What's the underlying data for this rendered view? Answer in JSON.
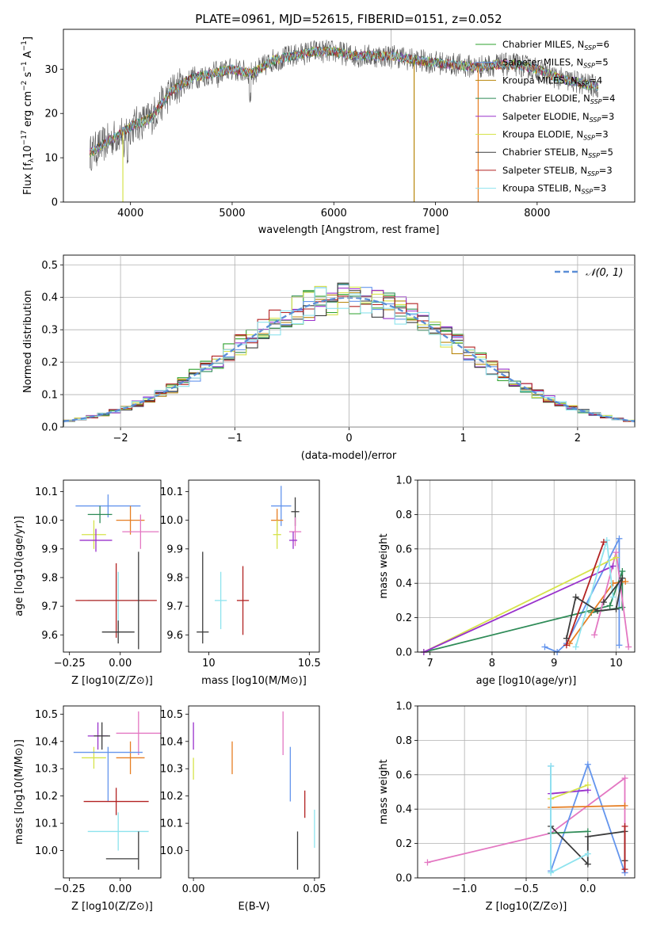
{
  "title": "PLATE=0961, MJD=52615, FIBERID=0151, z=0.052",
  "chart_data": [
    {
      "id": "spectrum",
      "type": "line",
      "xlabel": "wavelength [Angstrom, rest frame]",
      "ylabel": "Flux [f_λ 10^-17 erg cm^-2 s^-1 A^-1]",
      "xlim": [
        3340,
        8960
      ],
      "ylim": [
        0,
        39
      ],
      "xticks": [
        "4000",
        "5000",
        "6000",
        "7000",
        "8000"
      ],
      "yticks": [
        "0",
        "10",
        "20",
        "30"
      ],
      "legend_loc": "right",
      "series": [
        {
          "name": "Chabrier MILES, N_SSP=6",
          "color": "#2ca02c"
        },
        {
          "name": "Salpeter MILES, N_SSP=5",
          "color": "#6495ed"
        },
        {
          "name": "Kroupa MILES, N_SSP=4",
          "color": "#b8860b"
        },
        {
          "name": "Chabrier ELODIE, N_SSP=4",
          "color": "#2e8b57"
        },
        {
          "name": "Salpeter ELODIE, N_SSP=3",
          "color": "#9932cc"
        },
        {
          "name": "Kroupa ELODIE, N_SSP=3",
          "color": "#d6e34a"
        },
        {
          "name": "Chabrier STELIB, N_SSP=5",
          "color": "#3c3c3c"
        },
        {
          "name": "Salpeter STELIB, N_SSP=3",
          "color": "#b22222"
        },
        {
          "name": "Kroupa STELIB, N_SSP=3",
          "color": "#8ee3ee"
        }
      ],
      "spectrum_shape": [
        [
          3600,
          11
        ],
        [
          3800,
          14
        ],
        [
          4000,
          17
        ],
        [
          4200,
          19
        ],
        [
          4400,
          25
        ],
        [
          4600,
          28
        ],
        [
          4800,
          29
        ],
        [
          5000,
          30
        ],
        [
          5200,
          29
        ],
        [
          5400,
          32
        ],
        [
          5600,
          33
        ],
        [
          5800,
          34
        ],
        [
          6000,
          34
        ],
        [
          6200,
          33
        ],
        [
          6400,
          33
        ],
        [
          6600,
          33
        ],
        [
          6800,
          32
        ],
        [
          7000,
          31.5
        ],
        [
          7200,
          31
        ],
        [
          7400,
          30.5
        ],
        [
          7600,
          31
        ],
        [
          7800,
          31
        ],
        [
          8000,
          30
        ],
        [
          8200,
          28
        ],
        [
          8400,
          27
        ],
        [
          8600,
          26
        ]
      ]
    },
    {
      "id": "residuals",
      "type": "line",
      "xlabel": "(data-model)/error",
      "ylabel": "Normed distribution",
      "xlim": [
        -2.5,
        2.5
      ],
      "ylim": [
        0,
        0.53
      ],
      "xticks": [
        "−2",
        "−1",
        "0",
        "1",
        "2"
      ],
      "yticks": [
        "0.0",
        "0.1",
        "0.2",
        "0.3",
        "0.4",
        "0.5"
      ],
      "legend": "𝒩(0, 1)",
      "grid": true
    },
    {
      "id": "age-vs-Z",
      "type": "scatter",
      "xlabel": "Z [log10(Z/Z⊙)]",
      "ylabel": "age [log10(age/yr)]",
      "xlim": [
        -0.28,
        0.2
      ],
      "ylim": [
        9.54,
        10.14
      ],
      "xticks": [
        "−0.25",
        "0.00"
      ],
      "yticks": [
        "9.6",
        "9.7",
        "9.8",
        "9.9",
        "10.0",
        "10.1"
      ],
      "points": [
        {
          "x": -0.06,
          "y": 10.05,
          "xerr": 0.16,
          "yerr": 0.04,
          "color": "#6495ed"
        },
        {
          "x": -0.1,
          "y": 10.02,
          "xerr": 0.06,
          "yerr": 0.03,
          "color": "#2e8b57"
        },
        {
          "x": 0.05,
          "y": 10.0,
          "xerr": 0.07,
          "yerr": 0.05,
          "color": "#e67e22"
        },
        {
          "x": 0.1,
          "y": 9.96,
          "xerr": 0.09,
          "yerr": 0.06,
          "color": "#e377c2"
        },
        {
          "x": -0.13,
          "y": 9.95,
          "xerr": 0.06,
          "yerr": 0.05,
          "color": "#d6e34a"
        },
        {
          "x": -0.12,
          "y": 9.93,
          "xerr": 0.08,
          "yerr": 0.04,
          "color": "#9932cc"
        },
        {
          "x": -0.01,
          "y": 9.72,
          "xerr": 0.15,
          "yerr": 0.1,
          "color": "#8ee3ee"
        },
        {
          "x": -0.02,
          "y": 9.72,
          "xerr": 0.2,
          "yerr": 0.13,
          "color": "#b22222"
        },
        {
          "x": -0.01,
          "y": 9.61,
          "xerr": 0.08,
          "yerr": 0.04,
          "color": "#3c3c3c"
        },
        {
          "x": 0.09,
          "y": 9.72,
          "xerr": 0.0,
          "yerr": 0.17,
          "color": "#3c3c3c"
        }
      ]
    },
    {
      "id": "age-vs-mass",
      "type": "scatter",
      "xlabel": "mass [log10(M/M⊙)]",
      "ylabel": "",
      "xlim": [
        9.9,
        10.55
      ],
      "ylim": [
        9.54,
        10.14
      ],
      "xticks": [
        "10",
        "10.5"
      ],
      "yticks": [
        "9.6",
        "9.7",
        "9.8",
        "9.9",
        "10.0",
        "10.1"
      ],
      "points": [
        {
          "x": 10.36,
          "y": 10.05,
          "xerr": 0.05,
          "yerr": 0.07,
          "color": "#6495ed"
        },
        {
          "x": 10.43,
          "y": 10.03,
          "xerr": 0.02,
          "yerr": 0.05,
          "color": "#3c3c3c"
        },
        {
          "x": 10.34,
          "y": 10.0,
          "xerr": 0.03,
          "yerr": 0.04,
          "color": "#e67e22"
        },
        {
          "x": 10.43,
          "y": 9.96,
          "xerr": 0.03,
          "yerr": 0.05,
          "color": "#e377c2"
        },
        {
          "x": 10.34,
          "y": 9.95,
          "xerr": 0.02,
          "yerr": 0.05,
          "color": "#d6e34a"
        },
        {
          "x": 10.42,
          "y": 9.93,
          "xerr": 0.02,
          "yerr": 0.03,
          "color": "#9932cc"
        },
        {
          "x": 10.06,
          "y": 9.72,
          "xerr": 0.03,
          "yerr": 0.1,
          "color": "#8ee3ee"
        },
        {
          "x": 10.17,
          "y": 9.72,
          "xerr": 0.03,
          "yerr": 0.12,
          "color": "#b22222"
        },
        {
          "x": 9.97,
          "y": 9.61,
          "xerr": 0.03,
          "yerr": 0.0,
          "color": "#3c3c3c"
        },
        {
          "x": 9.97,
          "y": 9.73,
          "xerr": 0.0,
          "yerr": 0.16,
          "color": "#3c3c3c"
        }
      ]
    },
    {
      "id": "mass-weight-vs-age",
      "type": "line",
      "xlabel": "age [log10(age/yr)]",
      "ylabel": "mass weight",
      "xlim": [
        6.8,
        10.3
      ],
      "ylim": [
        0,
        1.0
      ],
      "xticks": [
        "7",
        "8",
        "9",
        "10"
      ],
      "yticks": [
        "0.0",
        "0.2",
        "0.4",
        "0.6",
        "0.8",
        "1.0"
      ],
      "grid": true,
      "series": [
        {
          "color": "#6495ed",
          "points": [
            [
              8.85,
              0.03
            ],
            [
              9.05,
              0.0
            ],
            [
              9.2,
              0.05
            ],
            [
              10.05,
              0.66
            ],
            [
              10.05,
              0.04
            ]
          ]
        },
        {
          "color": "#2e8b57",
          "points": [
            [
              6.9,
              0.0
            ],
            [
              9.9,
              0.27
            ],
            [
              10.1,
              0.47
            ],
            [
              10.1,
              0.26
            ],
            [
              9.6,
              0.23
            ]
          ]
        },
        {
          "color": "#e67e22",
          "points": [
            [
              9.25,
              0.05
            ],
            [
              9.95,
              0.4
            ],
            [
              10.15,
              0.41
            ]
          ]
        },
        {
          "color": "#e377c2",
          "points": [
            [
              9.65,
              0.1
            ],
            [
              10.0,
              0.58
            ],
            [
              10.2,
              0.03
            ]
          ]
        },
        {
          "color": "#d6e34a",
          "points": [
            [
              6.9,
              0.0
            ],
            [
              10.0,
              0.55
            ]
          ]
        },
        {
          "color": "#9932cc",
          "points": [
            [
              6.9,
              0.0
            ],
            [
              9.95,
              0.5
            ]
          ]
        },
        {
          "color": "#8ee3ee",
          "points": [
            [
              9.35,
              0.03
            ],
            [
              9.85,
              0.65
            ],
            [
              9.95,
              0.32
            ]
          ]
        },
        {
          "color": "#b22222",
          "points": [
            [
              9.2,
              0.04
            ],
            [
              9.8,
              0.64
            ]
          ]
        },
        {
          "color": "#3c3c3c",
          "points": [
            [
              9.2,
              0.08
            ],
            [
              9.35,
              0.32
            ],
            [
              9.7,
              0.24
            ],
            [
              10.0,
              0.25
            ],
            [
              10.1,
              0.43
            ],
            [
              9.8,
              0.29
            ]
          ]
        }
      ]
    },
    {
      "id": "mass-vs-Z",
      "type": "scatter",
      "xlabel": "Z [log10(Z/Z⊙)]",
      "ylabel": "mass [log10(M/M⊙)]",
      "xlim": [
        -0.28,
        0.2
      ],
      "ylim": [
        9.9,
        10.53
      ],
      "xticks": [
        "−0.25",
        "0.00"
      ],
      "yticks": [
        "10.0",
        "10.1",
        "10.2",
        "10.3",
        "10.4",
        "10.5"
      ],
      "points": [
        {
          "x": 0.09,
          "y": 10.43,
          "xerr": 0.11,
          "yerr": 0.08,
          "color": "#e377c2"
        },
        {
          "x": -0.11,
          "y": 10.42,
          "xerr": 0.05,
          "yerr": 0.05,
          "color": "#9932cc"
        },
        {
          "x": -0.09,
          "y": 10.42,
          "xerr": 0.04,
          "yerr": 0.05,
          "color": "#3c3c3c"
        },
        {
          "x": 0.05,
          "y": 10.34,
          "xerr": 0.07,
          "yerr": 0.06,
          "color": "#e67e22"
        },
        {
          "x": -0.13,
          "y": 10.34,
          "xerr": 0.06,
          "yerr": 0.04,
          "color": "#d6e34a"
        },
        {
          "x": -0.06,
          "y": 10.36,
          "xerr": 0.17,
          "yerr": 0.0,
          "color": "#6495ed"
        },
        {
          "x": -0.06,
          "y": 10.28,
          "xerr": 0.0,
          "yerr": 0.1,
          "color": "#6495ed"
        },
        {
          "x": -0.02,
          "y": 10.18,
          "xerr": 0.16,
          "yerr": 0.05,
          "color": "#b22222"
        },
        {
          "x": -0.01,
          "y": 10.07,
          "xerr": 0.15,
          "yerr": 0.07,
          "color": "#8ee3ee"
        },
        {
          "x": 0.01,
          "y": 9.97,
          "xerr": 0.08,
          "yerr": 0.0,
          "color": "#3c3c3c"
        },
        {
          "x": 0.09,
          "y": 10.0,
          "xerr": 0.0,
          "yerr": 0.07,
          "color": "#3c3c3c"
        }
      ]
    },
    {
      "id": "mass-vs-EBV",
      "type": "scatter",
      "xlabel": "E(B-V)",
      "ylabel": "",
      "xlim": [
        -0.002,
        0.052
      ],
      "ylim": [
        9.9,
        10.53
      ],
      "xticks": [
        "0.00",
        "0.05"
      ],
      "yticks": [
        "10.0",
        "10.1",
        "10.2",
        "10.3",
        "10.4",
        "10.5"
      ],
      "points": [
        {
          "x": 0.0,
          "y": 10.42,
          "yerr": 0.05,
          "color": "#9932cc"
        },
        {
          "x": 0.0,
          "y": 10.3,
          "yerr": 0.04,
          "color": "#d6e34a"
        },
        {
          "x": 0.016,
          "y": 10.34,
          "yerr": 0.06,
          "color": "#e67e22"
        },
        {
          "x": 0.037,
          "y": 10.43,
          "yerr": 0.08,
          "color": "#e377c2"
        },
        {
          "x": 0.04,
          "y": 10.28,
          "yerr": 0.1,
          "color": "#6495ed"
        },
        {
          "x": 0.046,
          "y": 10.17,
          "yerr": 0.05,
          "color": "#b22222"
        },
        {
          "x": 0.043,
          "y": 10.0,
          "yerr": 0.07,
          "color": "#3c3c3c"
        },
        {
          "x": 0.05,
          "y": 10.08,
          "yerr": 0.07,
          "color": "#8ee3ee"
        }
      ]
    },
    {
      "id": "mass-weight-vs-Z",
      "type": "line",
      "xlabel": "Z [log10(Z/Z⊙)]",
      "ylabel": "mass weight",
      "xlim": [
        -1.38,
        0.38
      ],
      "ylim": [
        0,
        1.0
      ],
      "xticks": [
        "−1.0",
        "−0.5",
        "0.0"
      ],
      "yticks": [
        "0.0",
        "0.2",
        "0.4",
        "0.6",
        "0.8",
        "1.0"
      ],
      "grid": true,
      "series": [
        {
          "color": "#e377c2",
          "points": [
            [
              -1.3,
              0.09
            ],
            [
              -0.3,
              0.26
            ],
            [
              0.3,
              0.58
            ],
            [
              0.3,
              0.03
            ]
          ]
        },
        {
          "color": "#6495ed",
          "points": [
            [
              -0.3,
              0.65
            ],
            [
              -0.3,
              0.04
            ],
            [
              0.0,
              0.66
            ],
            [
              0.3,
              0.03
            ]
          ]
        },
        {
          "color": "#9932cc",
          "points": [
            [
              -0.3,
              0.49
            ],
            [
              0.0,
              0.51
            ]
          ]
        },
        {
          "color": "#d6e34a",
          "points": [
            [
              -0.3,
              0.46
            ],
            [
              0.0,
              0.54
            ]
          ]
        },
        {
          "color": "#e67e22",
          "points": [
            [
              -0.3,
              0.41
            ],
            [
              0.3,
              0.42
            ]
          ]
        },
        {
          "color": "#2e8b57",
          "points": [
            [
              -0.3,
              0.26
            ],
            [
              0.0,
              0.27
            ]
          ]
        },
        {
          "color": "#3c3c3c",
          "points": [
            [
              -0.3,
              0.3
            ],
            [
              0.0,
              0.08
            ],
            [
              0.0,
              0.24
            ],
            [
              0.3,
              0.27
            ],
            [
              0.3,
              0.1
            ]
          ]
        },
        {
          "color": "#8ee3ee",
          "points": [
            [
              -0.3,
              0.65
            ],
            [
              -0.3,
              0.03
            ],
            [
              0.0,
              0.14
            ]
          ]
        },
        {
          "color": "#b22222",
          "points": [
            [
              0.3,
              0.3
            ],
            [
              0.3,
              0.05
            ]
          ]
        }
      ]
    }
  ]
}
